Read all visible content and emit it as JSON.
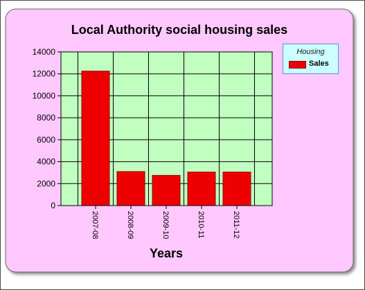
{
  "chart_data": {
    "type": "bar",
    "title": "Local Authority social housing sales",
    "xlabel": "Years",
    "ylabel": "",
    "categories": [
      "2007-08",
      "2008-09",
      "2009-10",
      "2010-11",
      "2011-12"
    ],
    "series": [
      {
        "name": "Sales",
        "values": [
          12250,
          3100,
          2750,
          3050,
          3050
        ]
      }
    ],
    "ylim": [
      0,
      14000
    ],
    "yticks": [
      "0",
      "2000",
      "4000",
      "6000",
      "8000",
      "10000",
      "12000",
      "14000"
    ],
    "grid": true,
    "legend": {
      "title": "Housing",
      "placement": "top-right"
    },
    "colors": {
      "panel_background": "#ffc8ff",
      "plot_background": "#c0ffc0",
      "bar_fill": "#ee0000",
      "bar_edge": "#990000",
      "legend_background": "#ccffff"
    }
  }
}
